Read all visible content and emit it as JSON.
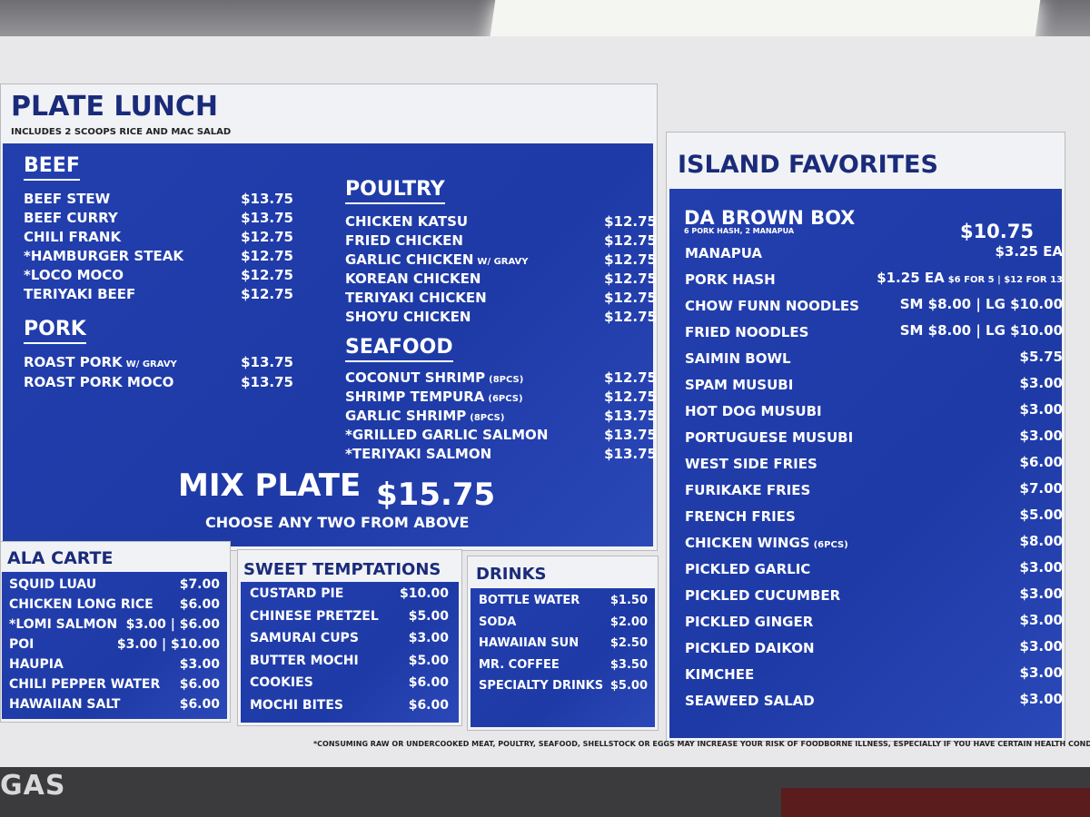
{
  "plate_lunch": {
    "title": "PLATE LUNCH",
    "subtitle": "INCLUDES 2 SCOOPS RICE AND MAC SALAD",
    "sections": [
      {
        "name": "BEEF",
        "items": [
          {
            "name": "BEEF STEW",
            "price": "$13.75"
          },
          {
            "name": "BEEF CURRY",
            "price": "$13.75"
          },
          {
            "name": "CHILI FRANK",
            "price": "$12.75"
          },
          {
            "name": "*HAMBURGER STEAK",
            "price": "$12.75"
          },
          {
            "name": "*LOCO MOCO",
            "price": "$12.75"
          },
          {
            "name": "TERIYAKI BEEF",
            "price": "$12.75"
          }
        ]
      },
      {
        "name": "PORK",
        "items": [
          {
            "name": "ROAST PORK",
            "note": "W/ GRAVY",
            "price": "$13.75"
          },
          {
            "name": "ROAST PORK MOCO",
            "price": "$13.75"
          }
        ]
      },
      {
        "name": "POULTRY",
        "items": [
          {
            "name": "CHICKEN KATSU",
            "price": "$12.75"
          },
          {
            "name": "FRIED CHICKEN",
            "price": "$12.75"
          },
          {
            "name": "GARLIC CHICKEN",
            "note": "W/ GRAVY",
            "price": "$12.75"
          },
          {
            "name": "KOREAN CHICKEN",
            "price": "$12.75"
          },
          {
            "name": "TERIYAKI CHICKEN",
            "price": "$12.75"
          },
          {
            "name": "SHOYU CHICKEN",
            "price": "$12.75"
          }
        ]
      },
      {
        "name": "SEAFOOD",
        "items": [
          {
            "name": "COCONUT SHRIMP",
            "note": "(8PCS)",
            "price": "$12.75"
          },
          {
            "name": "SHRIMP TEMPURA",
            "note": "(6PCS)",
            "price": "$12.75"
          },
          {
            "name": "GARLIC SHRIMP",
            "note": "(8PCS)",
            "price": "$13.75"
          },
          {
            "name": "*GRILLED GARLIC SALMON",
            "price": "$13.75"
          },
          {
            "name": "*TERIYAKI SALMON",
            "price": "$13.75"
          }
        ]
      }
    ],
    "mix_plate": {
      "label": "MIX PLATE",
      "price": "$15.75",
      "note": "CHOOSE ANY TWO FROM ABOVE"
    }
  },
  "ala_carte": {
    "title": "ALA CARTE",
    "items": [
      {
        "name": "SQUID LUAU",
        "price": "$7.00"
      },
      {
        "name": "CHICKEN LONG RICE",
        "price": "$6.00"
      },
      {
        "name": "*LOMI SALMON",
        "price": "$3.00 | $6.00"
      },
      {
        "name": "POI",
        "price": "$3.00 | $10.00"
      },
      {
        "name": "HAUPIA",
        "price": "$3.00"
      },
      {
        "name": "CHILI PEPPER WATER",
        "price": "$6.00"
      },
      {
        "name": "HAWAIIAN SALT",
        "price": "$6.00"
      }
    ]
  },
  "sweet": {
    "title": "SWEET TEMPTATIONS",
    "items": [
      {
        "name": "CUSTARD PIE",
        "price": "$10.00"
      },
      {
        "name": "CHINESE PRETZEL",
        "price": "$5.00"
      },
      {
        "name": "SAMURAI CUPS",
        "price": "$3.00"
      },
      {
        "name": "BUTTER MOCHI",
        "price": "$5.00"
      },
      {
        "name": "COOKIES",
        "price": "$6.00"
      },
      {
        "name": "MOCHI BITES",
        "price": "$6.00"
      }
    ]
  },
  "drinks": {
    "title": "DRINKS",
    "items": [
      {
        "name": "BOTTLE WATER",
        "price": "$1.50"
      },
      {
        "name": "SODA",
        "price": "$2.00"
      },
      {
        "name": "HAWAIIAN SUN",
        "price": "$2.50"
      },
      {
        "name": "MR. COFFEE",
        "price": "$3.50"
      },
      {
        "name": "SPECIALTY DRINKS",
        "price": "$5.00"
      }
    ]
  },
  "island": {
    "title": "ISLAND FAVORITES",
    "brown_box": {
      "name": "DA BROWN BOX",
      "note": "6 PORK HASH, 2 MANAPUA",
      "price": "$10.75"
    },
    "items": [
      {
        "name": "MANAPUA",
        "price": "$3.25 EA"
      },
      {
        "name": "PORK HASH",
        "price": "$1.25 EA",
        "note": "$6 FOR 5 | $12 FOR 13"
      },
      {
        "name": "CHOW FUNN NOODLES",
        "price": "SM $8.00 | LG $10.00"
      },
      {
        "name": "FRIED NOODLES",
        "price": "SM $8.00 | LG $10.00"
      },
      {
        "name": "SAIMIN BOWL",
        "price": "$5.75"
      },
      {
        "name": "SPAM MUSUBI",
        "price": "$3.00"
      },
      {
        "name": "HOT DOG MUSUBI",
        "price": "$3.00"
      },
      {
        "name": "PORTUGUESE MUSUBI",
        "price": "$3.00"
      },
      {
        "name": "WEST SIDE FRIES",
        "price": "$6.00"
      },
      {
        "name": "FURIKAKE FRIES",
        "price": "$7.00"
      },
      {
        "name": "FRENCH FRIES",
        "price": "$5.00"
      },
      {
        "name": "CHICKEN WINGS",
        "note": "(6PCS)",
        "price": "$8.00"
      },
      {
        "name": "PICKLED GARLIC",
        "price": "$3.00"
      },
      {
        "name": "PICKLED CUCUMBER",
        "price": "$3.00"
      },
      {
        "name": "PICKLED GINGER",
        "price": "$3.00"
      },
      {
        "name": "PICKLED DAIKON",
        "price": "$3.00"
      },
      {
        "name": "KIMCHEE",
        "price": "$3.00"
      },
      {
        "name": "SEAWEED SALAD",
        "price": "$3.00"
      }
    ]
  },
  "footnote": "*CONSUMING RAW OR UNDERCOOKED MEAT, POULTRY, SEAFOOD, SHELLSTOCK OR EGGS MAY INCREASE YOUR RISK OF FOODBORNE ILLNESS, ESPECIALLY IF YOU HAVE CERTAIN HEALTH CONDITIONS.",
  "background_sign": "GAS",
  "colors": {
    "menu_blue": "#1e3aa6",
    "header_navy": "#1a2b7a"
  }
}
